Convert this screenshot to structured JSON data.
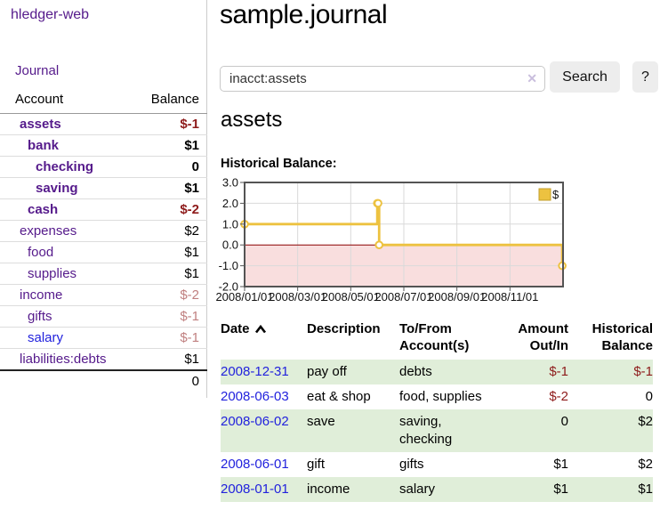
{
  "sidebar": {
    "brand": "hledger-web",
    "nav": {
      "journal": "Journal"
    },
    "accounts_table": {
      "col_account": "Account",
      "col_balance": "Balance",
      "rows": [
        {
          "name": "assets",
          "balance": "$-1"
        },
        {
          "name": "bank",
          "balance": "$1"
        },
        {
          "name": "checking",
          "balance": "0"
        },
        {
          "name": "saving",
          "balance": "$1"
        },
        {
          "name": "cash",
          "balance": "$-2"
        },
        {
          "name": "expenses",
          "balance": "$2"
        },
        {
          "name": "food",
          "balance": "$1"
        },
        {
          "name": "supplies",
          "balance": "$1"
        },
        {
          "name": "income",
          "balance": "$-2"
        },
        {
          "name": "gifts",
          "balance": "$-1"
        },
        {
          "name": "salary",
          "balance": "$-1"
        },
        {
          "name": "liabilities:debts",
          "balance": "$1"
        }
      ],
      "total": "0"
    }
  },
  "header": {
    "title": "sample.journal"
  },
  "search": {
    "query": "inacct:assets",
    "clear_icon": "✕",
    "button": "Search",
    "help_button": "?"
  },
  "account_page": {
    "heading": "assets",
    "chart_label": "Historical Balance:"
  },
  "chart_data": {
    "type": "line",
    "title": "Historical Balance:",
    "step": true,
    "series": [
      {
        "name": "$",
        "color": "#edc240",
        "points": [
          {
            "date": "2008-01-01",
            "m": 0.0,
            "value": 1
          },
          {
            "date": "2008-06-01",
            "m": 5.0,
            "value": 2
          },
          {
            "date": "2008-06-02",
            "m": 5.03,
            "value": 2
          },
          {
            "date": "2008-06-03",
            "m": 5.07,
            "value": 0
          },
          {
            "date": "2008-12-31",
            "m": 11.97,
            "value": -1
          }
        ]
      }
    ],
    "x_ticks": [
      {
        "label": "2008/01/01",
        "m": 0
      },
      {
        "label": "2008/03/01",
        "m": 2
      },
      {
        "label": "2008/05/01",
        "m": 4
      },
      {
        "label": "2008/07/01",
        "m": 6
      },
      {
        "label": "2008/09/01",
        "m": 8
      },
      {
        "label": "2008/11/01",
        "m": 10
      }
    ],
    "y_ticks": [
      {
        "label": "3.0",
        "value": 3
      },
      {
        "label": "2.0",
        "value": 2
      },
      {
        "label": "1.0",
        "value": 1
      },
      {
        "label": "0.0",
        "value": 0
      },
      {
        "label": "-1.0",
        "value": -1
      },
      {
        "label": "-2.0",
        "value": -2
      }
    ],
    "ylim": [
      -2,
      3
    ],
    "xlim_months": [
      0,
      12
    ],
    "legend": {
      "label": "$",
      "position": "top-right"
    },
    "colors": {
      "negative_region": "#f9dede",
      "zero_line": "#8b0000",
      "grid": "#d9d9d9",
      "border": "#545454",
      "marker_fill": "#ffffff",
      "legend_box_stroke": "#c19e2b"
    }
  },
  "register": {
    "headers": {
      "date": "Date",
      "description": "Description",
      "tofrom_line1": "To/From",
      "tofrom_line2": "Account(s)",
      "amount_line1": "Amount",
      "amount_line2": "Out/In",
      "hist_line1": "Historical",
      "hist_line2": "Balance"
    },
    "rows": [
      {
        "date": "2008-12-31",
        "description": "pay off",
        "accounts_line1": "debts",
        "accounts_line2": "",
        "amount": "$-1",
        "balance": "$-1"
      },
      {
        "date": "2008-06-03",
        "description": "eat & shop",
        "accounts_line1": "food, supplies",
        "accounts_line2": "",
        "amount": "$-2",
        "balance": "0"
      },
      {
        "date": "2008-06-02",
        "description": "save",
        "accounts_line1": "saving,",
        "accounts_line2": "checking",
        "amount": "0",
        "balance": "$2"
      },
      {
        "date": "2008-06-01",
        "description": "gift",
        "accounts_line1": "gifts",
        "accounts_line2": "",
        "amount": "$1",
        "balance": "$2"
      },
      {
        "date": "2008-01-01",
        "description": "income",
        "accounts_line1": "salary",
        "accounts_line2": "",
        "amount": "$1",
        "balance": "$1"
      }
    ]
  }
}
